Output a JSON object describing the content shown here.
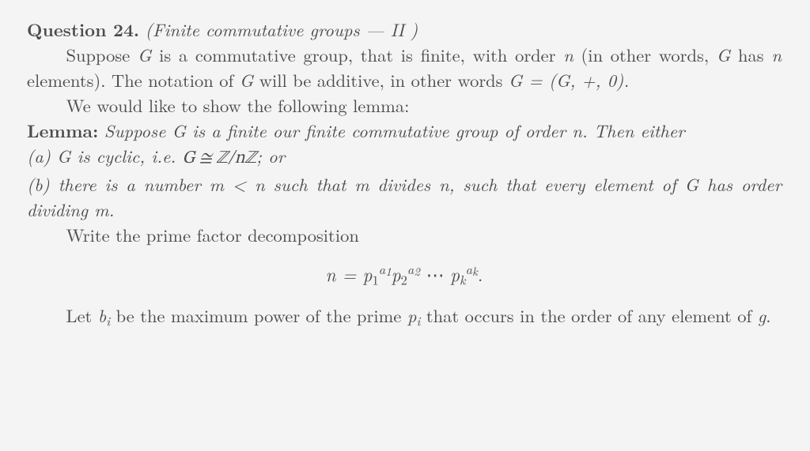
{
  "colors": {
    "text": "#4a4c4a",
    "background": "#f3f4f3"
  },
  "typography": {
    "base_fontsize_pt": 17,
    "line_height": 1.42,
    "family": "Computer Modern / serif (scanned print)"
  },
  "question": {
    "label": "Question 24.",
    "subtitle": "(Finite commutative groups — II )"
  },
  "p1a": "Suppose ",
  "p1b": " is a commutative group, that is finite, with order ",
  "p1c": " (in other words, ",
  "p1d": " has ",
  "p1e": " elements). The notation of ",
  "p1f": " will be additive, in other words ",
  "p1_eq": "G = (G, +, 0).",
  "p2": "We would like to show the following lemma:",
  "lemma_label": "Lemma:",
  "lemma_a": "Suppose ",
  "lemma_b": " is a finite our finite commutative group of order ",
  "lemma_c": ". Then either",
  "opt_a_pref": "(a)  ",
  "opt_a_1": "G is cyclic, i.e. ",
  "opt_a_iso": "G ≅ ℤ/nℤ",
  "opt_a_2": "; or",
  "opt_b_pref": "(b)  ",
  "opt_b_1": "there is a number ",
  "opt_b_rel": "m < n",
  "opt_b_2": " such that ",
  "opt_b_3": " divides ",
  "opt_b_4": ", such that every element of ",
  "opt_b_5": " has order dividing ",
  "opt_b_6": ".",
  "p3": "Write the prime factor decomposition",
  "eqn": {
    "lhs": "n = ",
    "dots": " ⋯ ",
    "period": "."
  },
  "p4a": "Let ",
  "p4b": " be the maximum power of the prime ",
  "p4c": " that occurs in the order of any element of ",
  "p4d": ".",
  "sym": {
    "G": "G",
    "n": "n",
    "m": "m",
    "g": "g",
    "bi": "b",
    "pi": "p",
    "i": "i"
  }
}
